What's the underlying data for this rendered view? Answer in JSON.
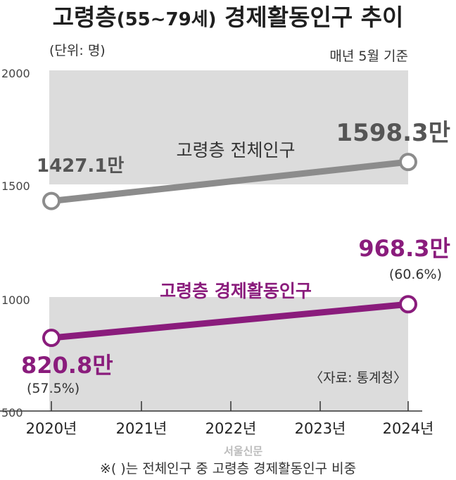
{
  "title_main": "고령층",
  "title_range": "(55~79세)",
  "title_rest": " 경제활동인구 추이",
  "unit_note": "(단위: 명)",
  "base_note": "매년 5월 기준",
  "source_note": "〈자료: 통계청〉",
  "footnote": "※(  )는 전체인구 중 고령층 경제활동인구 비중",
  "logo_text": "서울신문",
  "chart_data": {
    "type": "line",
    "title": "고령층(55~79세) 경제활동인구 추이",
    "x": [
      "2020년",
      "2021년",
      "2022년",
      "2023년",
      "2024년"
    ],
    "yticks": [
      "2000",
      "1500",
      "1000",
      "500"
    ],
    "series": [
      {
        "name": "고령층 전체인구",
        "color": "#8c8c8c",
        "points": [
          {
            "x": "2020년",
            "y": 1427.1
          },
          {
            "x": "2024년",
            "y": 1598.3
          }
        ],
        "labels": [
          "1427.1만",
          "1598.3만"
        ]
      },
      {
        "name": "고령층 경제활동인구",
        "color": "#8a1c7c",
        "points": [
          {
            "x": "2020년",
            "y": 820.8
          },
          {
            "x": "2024년",
            "y": 968.3
          }
        ],
        "labels": [
          "820.8만",
          "968.3만"
        ],
        "shares": [
          "(57.5%)",
          "(60.6%)"
        ]
      }
    ]
  }
}
